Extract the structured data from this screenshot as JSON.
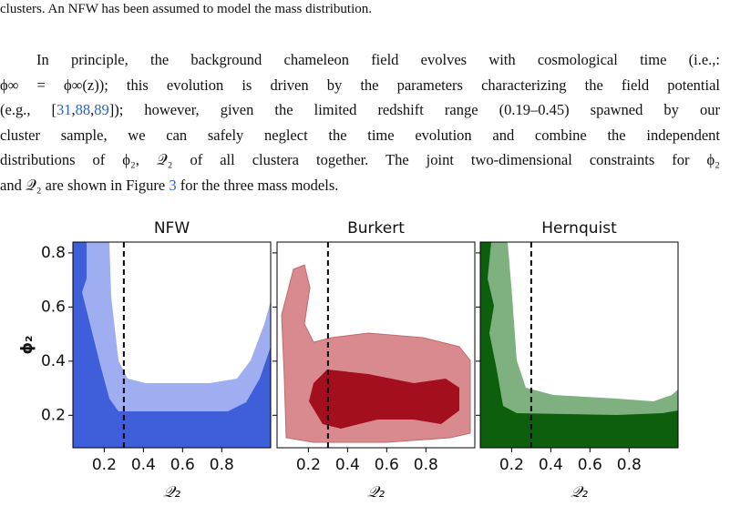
{
  "text": {
    "top_line": "clusters. An NFW has been assumed to model the mass distribution.",
    "paragraph": [
      [
        "In principle, the background chameleon field evolves with cosmological time (i.e.,:"
      ],
      [
        "ϕ∞ = ϕ∞(z)); this evolution is driven by the parameters characterizing the field potential"
      ],
      [
        "(e.g., [",
        {
          "cite": "31"
        },
        ",",
        {
          "cite": "88"
        },
        ",",
        {
          "cite": "89"
        },
        "]); however, given the limited redshift range (0.19–0.45) spawned by our"
      ],
      [
        "cluster sample, we can safely neglect the time evolution and combine the independent"
      ],
      [
        "distributions of ϕ₂, 𝒬₂ of all clustera together. The joint two-dimensional constraints for ϕ₂"
      ],
      [
        "and 𝒬₂ are shown in Figure ",
        {
          "cite": "3"
        },
        " for the three mass models."
      ]
    ]
  },
  "figure": {
    "ylabel": "ϕ₂",
    "xlim": [
      0.04,
      1.05
    ],
    "ylim": [
      0.08,
      0.84
    ],
    "yticks": [
      0.2,
      0.4,
      0.6,
      0.8
    ],
    "vline": 0.3,
    "panels": [
      {
        "title": "NFW",
        "xlabel": "𝒬₂",
        "xticks": [
          0.2,
          0.4,
          0.6,
          0.8
        ]
      },
      {
        "title": "Burkert",
        "xlabel": "𝒬₂",
        "xticks": [
          0.2,
          0.4,
          0.6,
          0.8
        ]
      },
      {
        "title": "Hernquist",
        "xlabel": "𝒬₂",
        "xticks": [
          0.2,
          0.4,
          0.6,
          0.8
        ]
      }
    ]
  }
}
